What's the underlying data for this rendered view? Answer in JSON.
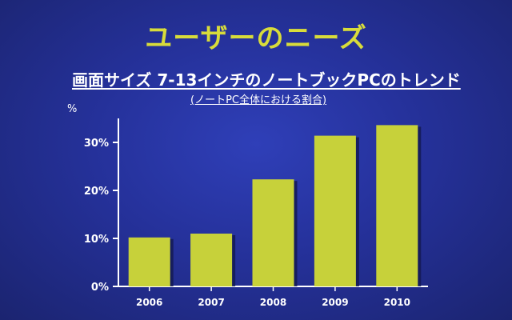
{
  "slide": {
    "title": "ユーザーのニーズ"
  },
  "chart_data": {
    "type": "bar",
    "title": "画面サイズ 7-13インチのノートブックPCのトレンド",
    "subtitle": "(ノートPC全体における割合)",
    "unit": "%",
    "categories": [
      "2006",
      "2007",
      "2008",
      "2009",
      "2010"
    ],
    "values": [
      10.2,
      11,
      22.3,
      31.4,
      33.6
    ],
    "ylim": [
      0,
      35
    ],
    "yticks": [
      "0%",
      "10%",
      "20%",
      "30%"
    ],
    "ytick_values": [
      0,
      10,
      20,
      30
    ],
    "grid": false,
    "legend": "none",
    "bar_color": "#c7d13a",
    "bar_shadow_color": "#141a55"
  }
}
